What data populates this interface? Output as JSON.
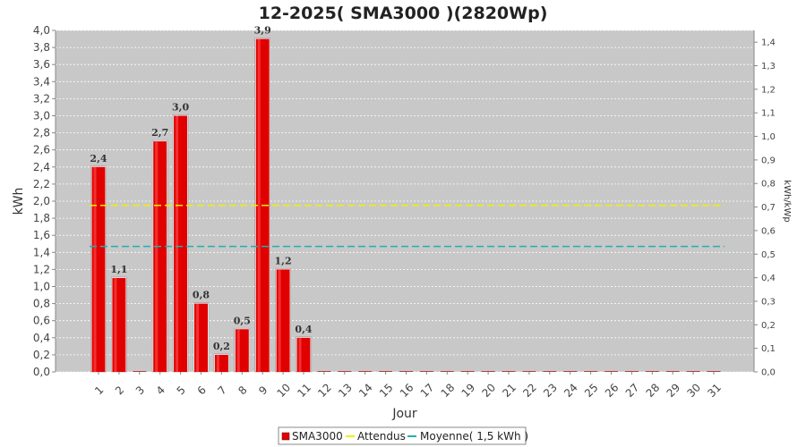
{
  "chart_data": {
    "type": "bar",
    "title": "12-2025( SMA3000 )(2820Wp)",
    "xlabel": "Jour",
    "ylabel": "kWh",
    "ylabel_right": "kWh/kWp",
    "categories": [
      "1",
      "2",
      "3",
      "4",
      "5",
      "6",
      "7",
      "8",
      "9",
      "10",
      "11",
      "12",
      "13",
      "14",
      "15",
      "16",
      "17",
      "18",
      "19",
      "20",
      "21",
      "22",
      "23",
      "24",
      "25",
      "26",
      "27",
      "28",
      "29",
      "30",
      "31"
    ],
    "series": [
      {
        "name": "SMA3000",
        "color": "#e00000",
        "values": [
          2.4,
          1.1,
          0,
          2.7,
          3.0,
          0.8,
          0.2,
          0.5,
          3.9,
          1.2,
          0.4,
          0,
          0,
          0,
          0,
          0,
          0,
          0,
          0,
          0,
          0,
          0,
          0,
          0,
          0,
          0,
          0,
          0,
          0,
          0,
          0
        ],
        "labels": [
          "2,4",
          "1,1",
          "",
          "2,7",
          "3,0",
          "0,8",
          "0,2",
          "0,5",
          "3,9",
          "1,2",
          "0,4",
          "",
          "",
          "",
          "",
          "",
          "",
          "",
          "",
          "",
          "",
          "",
          "",
          "",
          "",
          "",
          "",
          "",
          "",
          "",
          ""
        ]
      }
    ],
    "reference_lines": [
      {
        "name": "Attendus",
        "value": 1.95,
        "color": "#f0f000",
        "style": "dashed"
      },
      {
        "name": "Moyenne( 1,5 kWh )",
        "value": 1.47,
        "color": "#20b0b0",
        "style": "dashed"
      }
    ],
    "ylim": [
      0,
      4.0
    ],
    "yticks": [
      "0,0",
      "0,2",
      "0,4",
      "0,6",
      "0,8",
      "1,0",
      "1,2",
      "1,4",
      "1,6",
      "1,8",
      "2,0",
      "2,2",
      "2,4",
      "2,6",
      "2,8",
      "3,0",
      "3,2",
      "3,4",
      "3,6",
      "3,8",
      "4,0"
    ],
    "ylim_right": [
      0,
      1.45
    ],
    "yticks_right": [
      "0,0",
      "0,1",
      "0,2",
      "0,3",
      "0,4",
      "0,5",
      "0,6",
      "0,7",
      "0,8",
      "0,9",
      "1,0",
      "1,1",
      "1,2",
      "1,3",
      "1,4"
    ],
    "grid": true,
    "legend_position": "bottom-center",
    "legend": [
      "SMA3000",
      "Attendus",
      "Moyenne( 1,5 kWh )"
    ]
  }
}
